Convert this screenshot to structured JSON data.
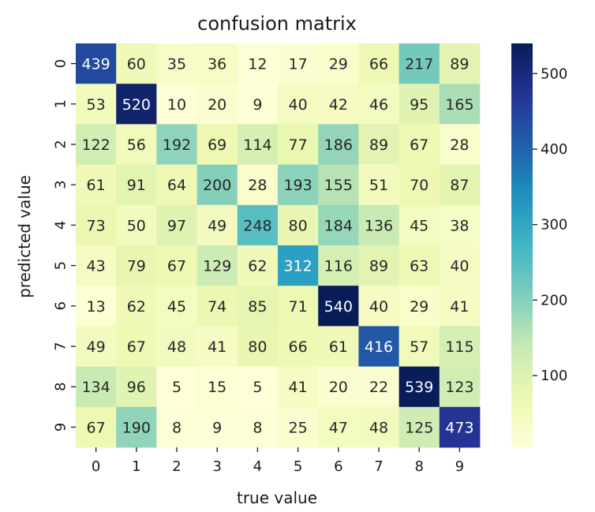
{
  "chart_data": {
    "type": "heatmap",
    "title": "confusion matrix",
    "xlabel": "true value",
    "ylabel": "predicted value",
    "x_categories": [
      "0",
      "1",
      "2",
      "3",
      "4",
      "5",
      "6",
      "7",
      "8",
      "9"
    ],
    "y_categories": [
      "0",
      "1",
      "2",
      "3",
      "4",
      "5",
      "6",
      "7",
      "8",
      "9"
    ],
    "values": [
      [
        439,
        60,
        35,
        36,
        12,
        17,
        29,
        66,
        217,
        89
      ],
      [
        53,
        520,
        10,
        20,
        9,
        40,
        42,
        46,
        95,
        165
      ],
      [
        122,
        56,
        192,
        69,
        114,
        77,
        186,
        89,
        67,
        28
      ],
      [
        61,
        91,
        64,
        200,
        28,
        193,
        155,
        51,
        70,
        87
      ],
      [
        73,
        50,
        97,
        49,
        248,
        80,
        184,
        136,
        45,
        38
      ],
      [
        43,
        79,
        67,
        129,
        62,
        312,
        116,
        89,
        63,
        40
      ],
      [
        13,
        62,
        45,
        74,
        85,
        71,
        540,
        40,
        29,
        41
      ],
      [
        49,
        67,
        48,
        41,
        80,
        66,
        61,
        416,
        57,
        115
      ],
      [
        134,
        96,
        5,
        15,
        5,
        41,
        20,
        22,
        539,
        123
      ],
      [
        67,
        190,
        8,
        9,
        8,
        25,
        47,
        48,
        125,
        473
      ]
    ],
    "colormap": "YlGnBu",
    "colorbar": {
      "ticks": [
        100,
        200,
        300,
        400,
        500
      ],
      "range": [
        5,
        540
      ]
    }
  }
}
